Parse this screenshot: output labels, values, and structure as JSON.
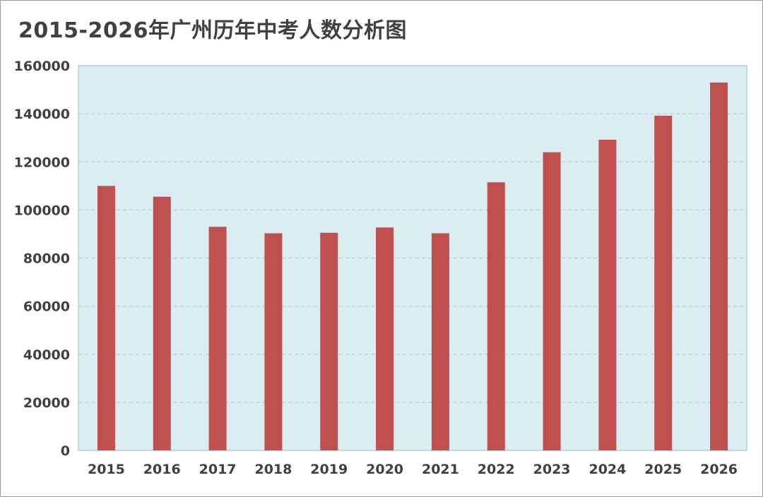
{
  "colors": {
    "plot_background": "#dcecf3",
    "plot_border": "#a8c4c8",
    "gridline": "#a9d6de",
    "bar": "#c0504d",
    "text": "#404040"
  },
  "chart_data": {
    "type": "bar",
    "title": "2015-2026年广州历年中考人数分析图",
    "xlabel": "",
    "ylabel": "",
    "categories": [
      "2015",
      "2016",
      "2017",
      "2018",
      "2019",
      "2020",
      "2021",
      "2022",
      "2023",
      "2024",
      "2025",
      "2026"
    ],
    "values": [
      110000,
      105500,
      93000,
      90300,
      90500,
      92700,
      90300,
      111500,
      124000,
      129200,
      139200,
      153000
    ],
    "ylim": [
      0,
      160000
    ],
    "yticks": [
      0,
      20000,
      40000,
      60000,
      80000,
      100000,
      120000,
      140000,
      160000
    ],
    "grid": true,
    "legend": "none"
  }
}
